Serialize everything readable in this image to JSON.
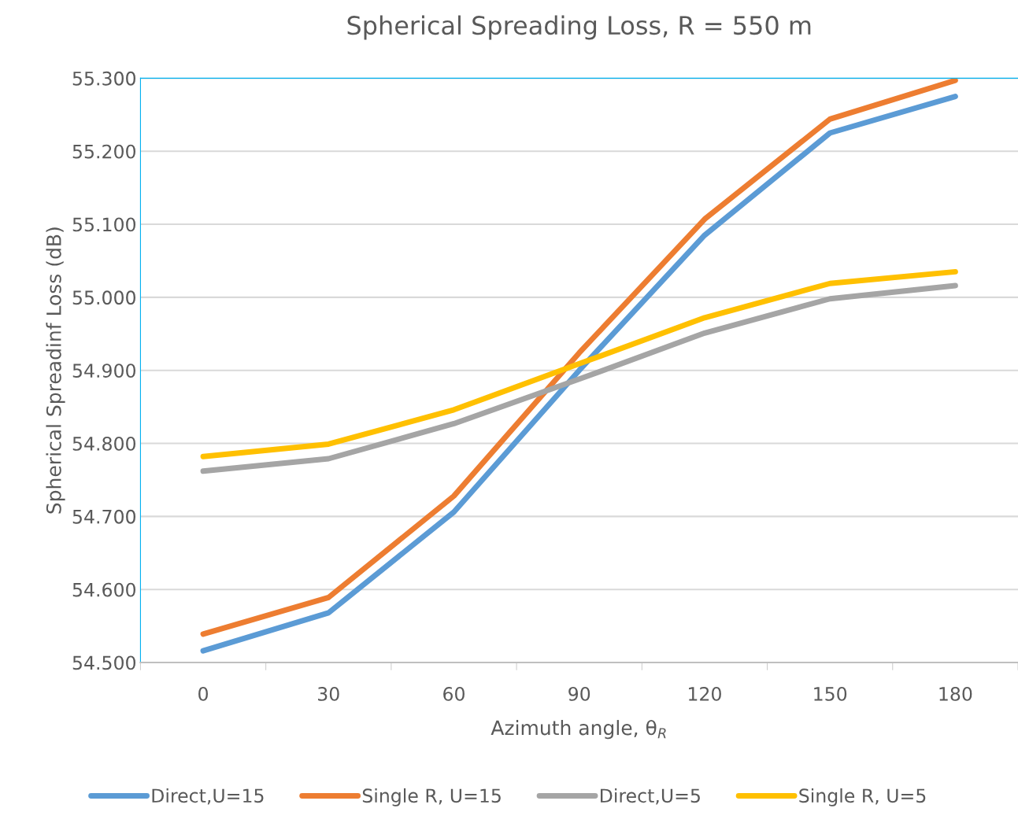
{
  "chart_data": {
    "type": "line",
    "title": "Spherical Spreading Loss, R = 550 m",
    "xlabel": "Azimuth angle, θ$_{R}$",
    "ylabel": "Spherical Spreadinf Loss (dB)",
    "categories": [
      "0",
      "30",
      "60",
      "90",
      "120",
      "150",
      "180"
    ],
    "series": [
      {
        "name": "Direct,U=15",
        "color": "#5b9bd5",
        "values": [
          54.516,
          54.568,
          54.706,
          54.9,
          55.085,
          55.225,
          55.275
        ]
      },
      {
        "name": "Single R, U=15",
        "color": "#ed7d31",
        "values": [
          54.539,
          54.589,
          54.728,
          54.924,
          55.107,
          55.244,
          55.297
        ]
      },
      {
        "name": "Direct,U=5",
        "color": "#a5a5a5",
        "values": [
          54.762,
          54.779,
          54.827,
          54.888,
          54.951,
          54.998,
          55.016
        ]
      },
      {
        "name": "Single R, U=5",
        "color": "#ffc000",
        "values": [
          54.782,
          54.799,
          54.846,
          54.909,
          54.972,
          55.019,
          55.035
        ]
      }
    ],
    "ylim": [
      54.5,
      55.3
    ],
    "yticks": [
      {
        "value": 54.5,
        "label": "54.500"
      },
      {
        "value": 54.6,
        "label": "54.600"
      },
      {
        "value": 54.7,
        "label": "54.700"
      },
      {
        "value": 54.8,
        "label": "54.800"
      },
      {
        "value": 54.9,
        "label": "54.900"
      },
      {
        "value": 55.0,
        "label": "55.000"
      },
      {
        "value": 55.1,
        "label": "55.100"
      },
      {
        "value": 55.2,
        "label": "55.200"
      },
      {
        "value": 55.3,
        "label": "55.300"
      }
    ],
    "grid": "y",
    "legend": "bottom",
    "marker": "none",
    "line_style": "solid"
  }
}
